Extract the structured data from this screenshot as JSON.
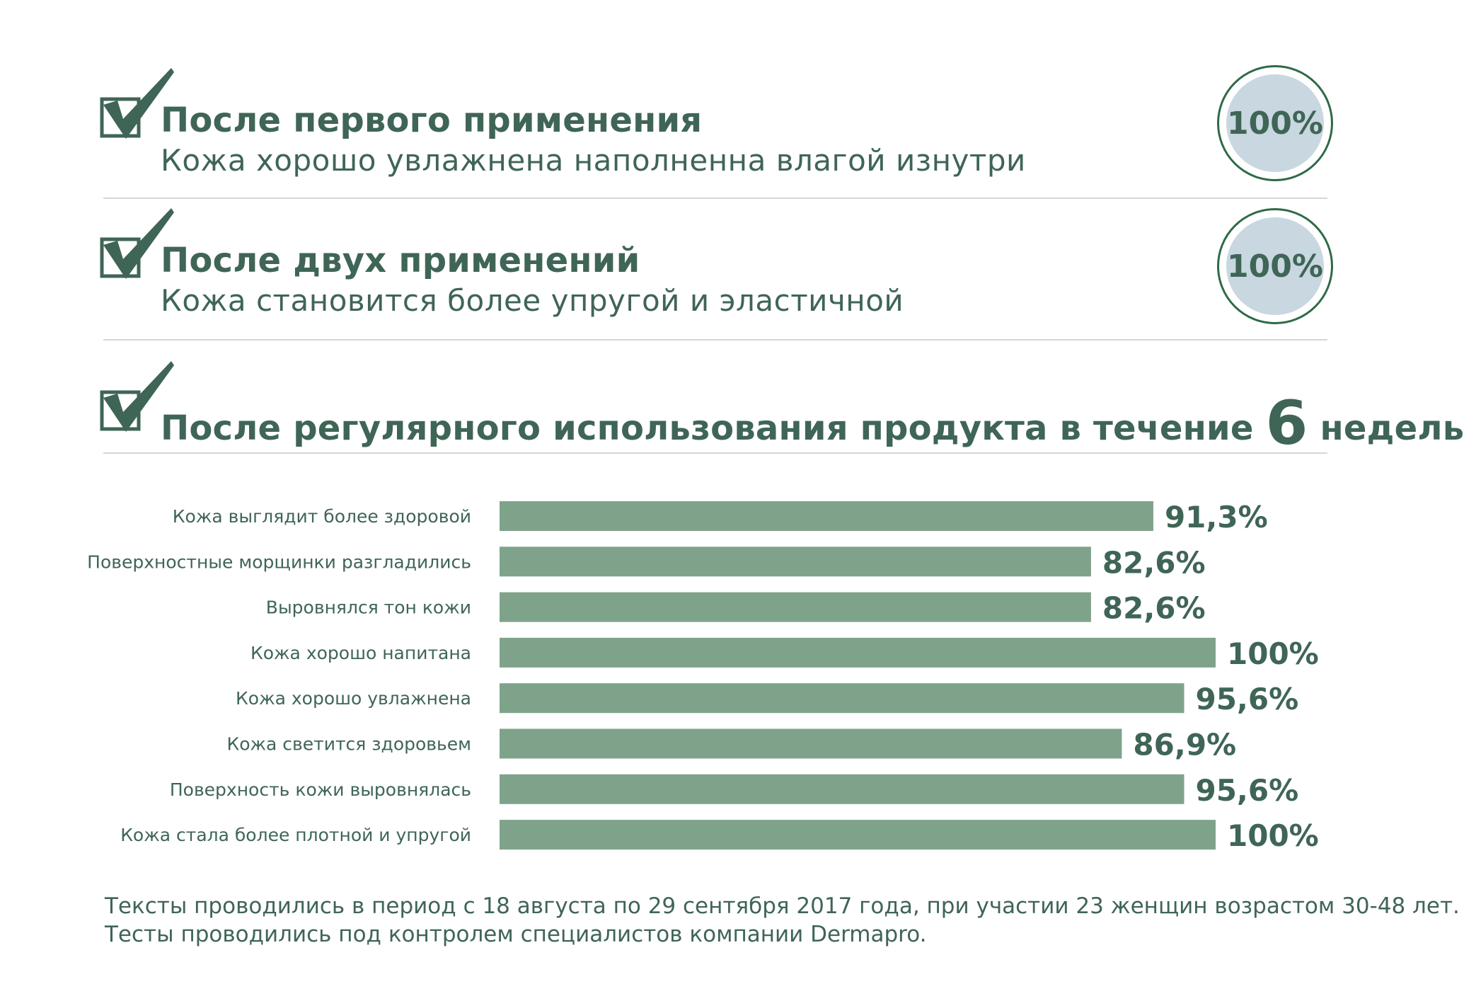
{
  "colors": {
    "text": "#3f6556",
    "bar": "#7fa38a",
    "circle_fill": "#c9d7e0",
    "circle_ring": "#2e6a48",
    "divider": "#d6d6d6"
  },
  "sections": [
    {
      "icon": "checkmark-icon",
      "title": "После первого применения",
      "subtitle": "Кожа хорошо увлажнена наполненна влагой изнутри",
      "badge": "100%"
    },
    {
      "icon": "checkmark-icon",
      "title": "После двух применений",
      "subtitle": "Кожа становится более упругой и эластичной",
      "badge": "100%"
    },
    {
      "icon": "checkmark-icon",
      "title_before": "После регулярного использования продукта в течение",
      "title_number": "6",
      "title_after": "недель"
    }
  ],
  "chart_data": {
    "type": "bar",
    "orientation": "horizontal",
    "xlim": [
      0,
      100
    ],
    "categories": [
      "Кожа выглядит более здоровой",
      "Поверхностные морщинки разгладились",
      "Выровнялся тон кожи",
      "Кожа хорошо напитана",
      "Кожа хорошо увлажнена",
      "Кожа светится здоровьем",
      "Поверхность кожи выровнялась",
      "Кожа стала более плотной и упругой"
    ],
    "values": [
      91.3,
      82.6,
      82.6,
      100,
      95.6,
      86.9,
      95.6,
      100
    ],
    "value_labels": [
      "91,3%",
      "82,6%",
      "82,6%",
      "100%",
      "95,6%",
      "86,9%",
      "95,6%",
      "100%"
    ]
  },
  "footnote": {
    "line1": "Тексты проводились в период с 18 августа по 29 сентября 2017 года, при участии 23 женщин возрастом 30-48 лет.",
    "line2": "Тесты проводились под контролем специалистов компании Dermapro."
  }
}
